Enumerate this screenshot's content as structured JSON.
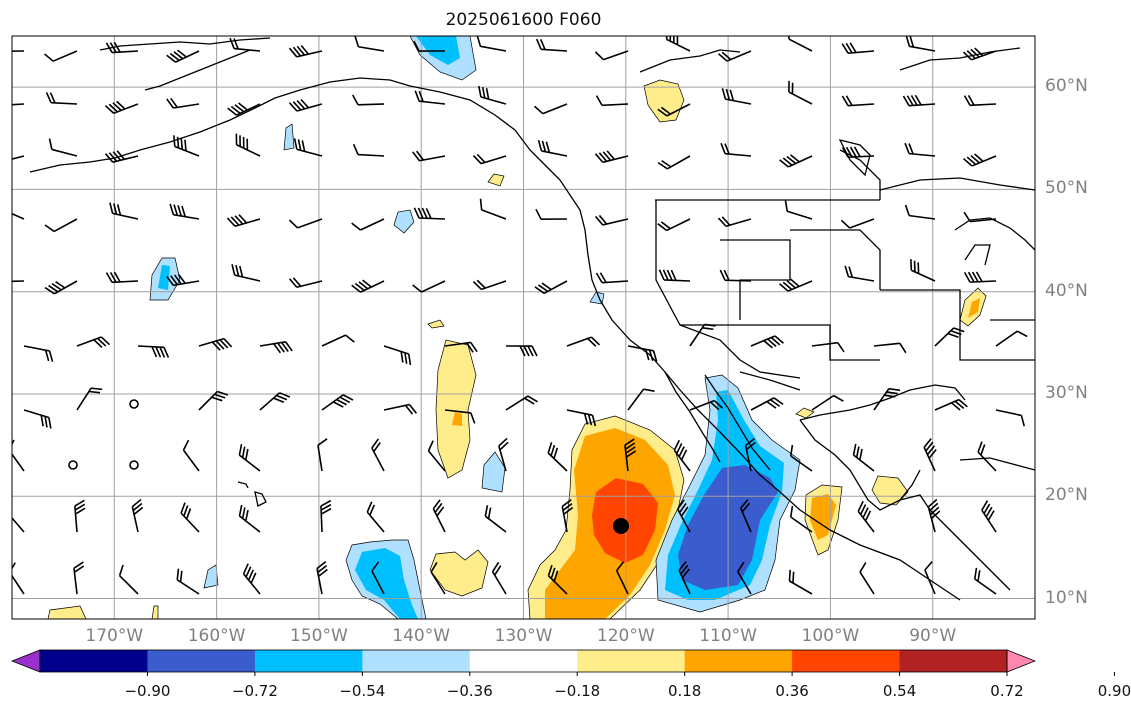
{
  "title": "2025061600 F060",
  "lat_labels": [
    {
      "text": "60°N",
      "lat": 60
    },
    {
      "text": "50°N",
      "lat": 50
    },
    {
      "text": "40°N",
      "lat": 40
    },
    {
      "text": "30°N",
      "lat": 30
    },
    {
      "text": "20°N",
      "lat": 20
    },
    {
      "text": "10°N",
      "lat": 10
    }
  ],
  "lon_labels": [
    {
      "text": "170°W",
      "lon": -170
    },
    {
      "text": "160°W",
      "lon": -160
    },
    {
      "text": "150°W",
      "lon": -150
    },
    {
      "text": "140°W",
      "lon": -140
    },
    {
      "text": "130°W",
      "lon": -130
    },
    {
      "text": "120°W",
      "lon": -120
    },
    {
      "text": "110°W",
      "lon": -110
    },
    {
      "text": "100°W",
      "lon": -100
    },
    {
      "text": "90°W",
      "lon": -90
    }
  ],
  "colorbar": {
    "labels": [
      "−0.90",
      "−0.72",
      "−0.54",
      "−0.36",
      "−0.18",
      "0.18",
      "0.36",
      "0.54",
      "0.72",
      "0.90"
    ],
    "colors": [
      "#9932cc",
      "#00008b",
      "#3a5ccc",
      "#00bfff",
      "#b0e0ff",
      "#ffffff",
      "#ffec8b",
      "#ffa500",
      "#ff4500",
      "#b22222",
      "#ff88b0"
    ]
  },
  "map_extent": {
    "lon_min": -180,
    "lon_max": -80,
    "lat_min": 8,
    "lat_max": 65
  },
  "colors": {
    "coast": "#000000",
    "grid": "#a0a0a0",
    "contour": "#000000"
  }
}
